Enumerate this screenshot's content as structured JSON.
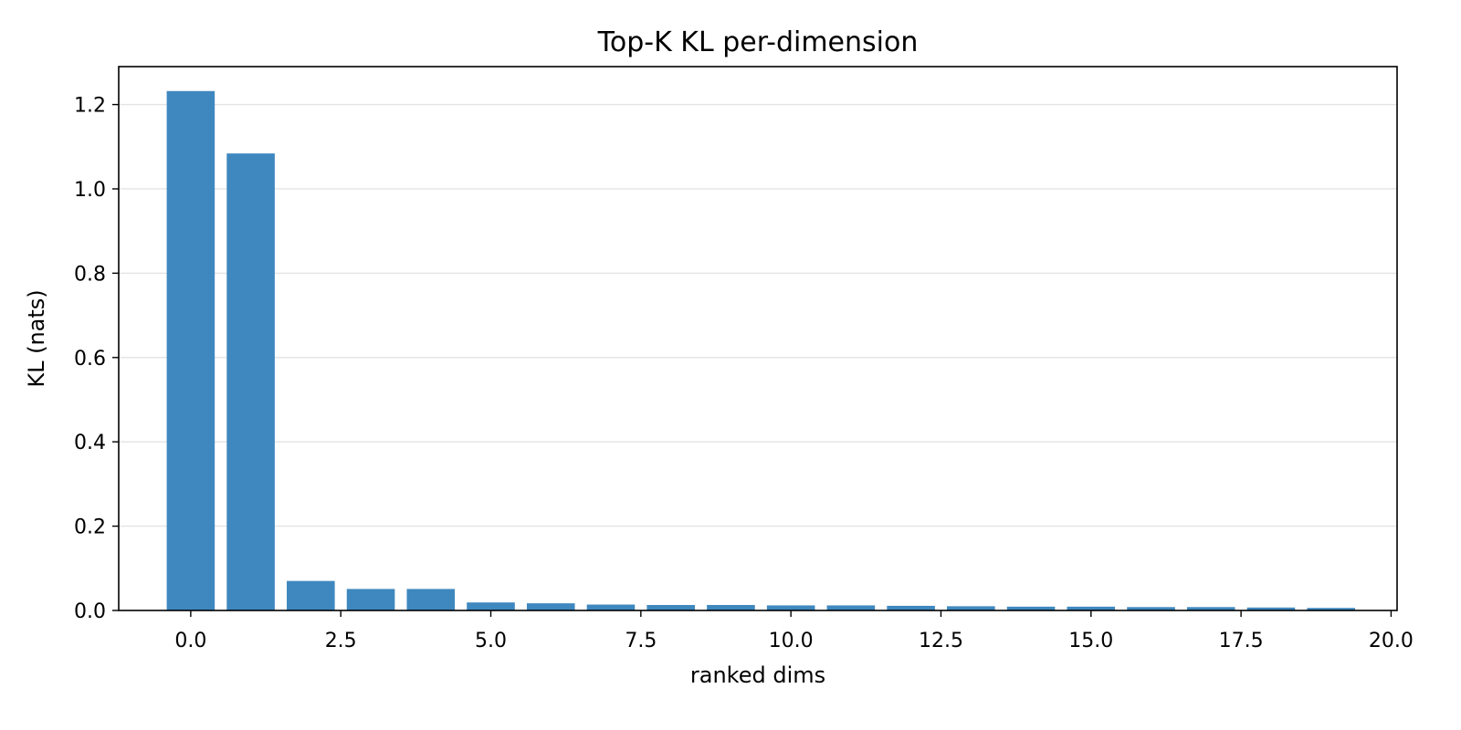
{
  "chart_data": {
    "type": "bar",
    "title": "Top-K KL per-dimension",
    "xlabel": "ranked dims",
    "ylabel": "KL (nats)",
    "x": [
      0,
      1,
      2,
      3,
      4,
      5,
      6,
      7,
      8,
      9,
      10,
      11,
      12,
      13,
      14,
      15,
      16,
      17,
      18,
      19
    ],
    "values": [
      1.232,
      1.084,
      0.07,
      0.051,
      0.051,
      0.019,
      0.017,
      0.014,
      0.013,
      0.013,
      0.012,
      0.012,
      0.011,
      0.01,
      0.009,
      0.009,
      0.008,
      0.008,
      0.007,
      0.006
    ],
    "xlim": [
      -1.2,
      20.1
    ],
    "ylim": [
      0,
      1.29
    ],
    "xticks": [
      0.0,
      2.5,
      5.0,
      7.5,
      10.0,
      12.5,
      15.0,
      17.5,
      20.0
    ],
    "xtick_labels": [
      "0.0",
      "2.5",
      "5.0",
      "7.5",
      "10.0",
      "12.5",
      "15.0",
      "17.5",
      "20.0"
    ],
    "yticks": [
      0.0,
      0.2,
      0.4,
      0.6,
      0.8,
      1.0,
      1.2
    ],
    "ytick_labels": [
      "0.0",
      "0.2",
      "0.4",
      "0.6",
      "0.8",
      "1.0",
      "1.2"
    ],
    "grid": "y",
    "bar_color": "#3f88bf",
    "grid_color": "#e3e3e3"
  }
}
